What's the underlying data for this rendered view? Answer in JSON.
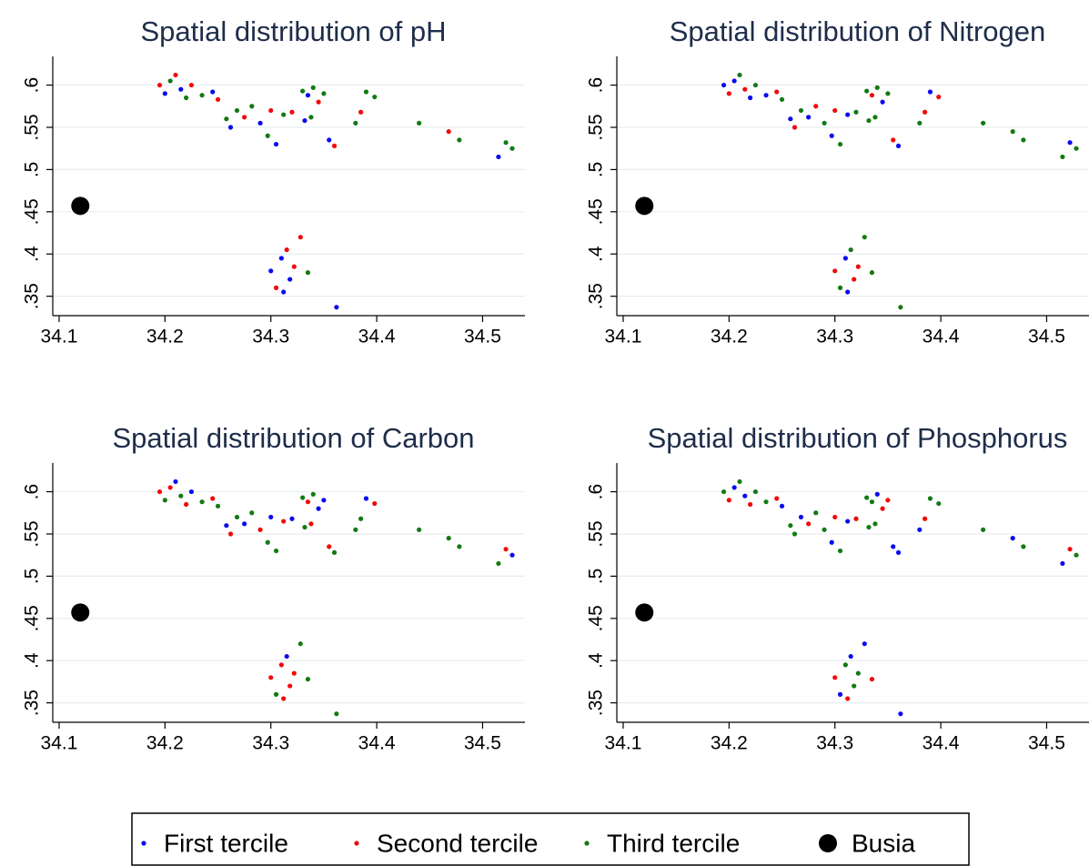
{
  "chart_data": [
    {
      "type": "scatter",
      "title": "Spatial distribution of pH",
      "xlim": [
        34.094,
        34.54
      ],
      "xticks": [
        34.1,
        34.2,
        34.3,
        34.4,
        34.5
      ],
      "ylim": [
        0.327,
        0.634
      ],
      "yticks": [
        {
          "value": 0.35,
          "label": ".35"
        },
        {
          "value": 0.4,
          "label": ".4"
        },
        {
          "value": 0.45,
          "label": ".45"
        },
        {
          "value": 0.5,
          "label": ".5"
        },
        {
          "value": 0.55,
          "label": ".55"
        },
        {
          "value": 0.6,
          "label": ".6"
        }
      ],
      "grid": true,
      "series": [
        {
          "name": "First tercile",
          "color": "#0a0af0",
          "marker": "small",
          "x": [
            34.2,
            34.215,
            34.245,
            34.262,
            34.29,
            34.305,
            34.335,
            34.332,
            34.355,
            34.515,
            34.3,
            34.31,
            34.318,
            34.312,
            34.362
          ],
          "values": [
            0.59,
            0.595,
            0.592,
            0.55,
            0.555,
            0.53,
            0.588,
            0.558,
            0.535,
            0.515,
            0.38,
            0.395,
            0.37,
            0.355,
            0.337
          ]
        },
        {
          "name": "Second tercile",
          "color": "#f00a0a",
          "marker": "small",
          "x": [
            34.195,
            34.21,
            34.225,
            34.25,
            34.275,
            34.3,
            34.32,
            34.345,
            34.36,
            34.385,
            34.468,
            34.305,
            34.315,
            34.322,
            34.328
          ],
          "values": [
            0.6,
            0.612,
            0.6,
            0.583,
            0.562,
            0.57,
            0.568,
            0.58,
            0.528,
            0.568,
            0.545,
            0.36,
            0.405,
            0.385,
            0.42
          ]
        },
        {
          "name": "Third tercile",
          "color": "#127a12",
          "marker": "small",
          "x": [
            34.205,
            34.22,
            34.235,
            34.258,
            34.268,
            34.282,
            34.297,
            34.312,
            34.33,
            34.34,
            34.338,
            34.35,
            34.38,
            34.39,
            34.398,
            34.44,
            34.478,
            34.522,
            34.528,
            34.335
          ],
          "values": [
            0.605,
            0.585,
            0.588,
            0.56,
            0.57,
            0.575,
            0.54,
            0.565,
            0.593,
            0.597,
            0.562,
            0.59,
            0.555,
            0.592,
            0.586,
            0.555,
            0.535,
            0.532,
            0.525,
            0.378
          ]
        },
        {
          "name": "Busia",
          "color": "#000000",
          "marker": "large",
          "x": [
            34.12
          ],
          "values": [
            0.457
          ]
        }
      ]
    },
    {
      "type": "scatter",
      "title": "Spatial distribution of Nitrogen",
      "xlim": [
        34.094,
        34.54
      ],
      "xticks": [
        34.1,
        34.2,
        34.3,
        34.4,
        34.5
      ],
      "ylim": [
        0.327,
        0.634
      ],
      "yticks": [
        {
          "value": 0.35,
          "label": ".35"
        },
        {
          "value": 0.4,
          "label": ".4"
        },
        {
          "value": 0.45,
          "label": ".45"
        },
        {
          "value": 0.5,
          "label": ".5"
        },
        {
          "value": 0.55,
          "label": ".55"
        },
        {
          "value": 0.6,
          "label": ".6"
        }
      ],
      "grid": true,
      "series": [
        {
          "name": "First tercile",
          "color": "#0a0af0",
          "marker": "small",
          "x": [
            34.195,
            34.205,
            34.22,
            34.235,
            34.258,
            34.275,
            34.297,
            34.312,
            34.345,
            34.36,
            34.39,
            34.522,
            34.31,
            34.312
          ],
          "values": [
            0.6,
            0.605,
            0.585,
            0.588,
            0.56,
            0.562,
            0.54,
            0.565,
            0.58,
            0.528,
            0.592,
            0.532,
            0.395,
            0.355
          ]
        },
        {
          "name": "Second tercile",
          "color": "#f00a0a",
          "marker": "small",
          "x": [
            34.2,
            34.215,
            34.245,
            34.262,
            34.282,
            34.3,
            34.335,
            34.355,
            34.385,
            34.398,
            34.3,
            34.318,
            34.322
          ],
          "values": [
            0.59,
            0.595,
            0.592,
            0.55,
            0.575,
            0.57,
            0.588,
            0.535,
            0.568,
            0.586,
            0.38,
            0.37,
            0.385
          ]
        },
        {
          "name": "Third tercile",
          "color": "#127a12",
          "marker": "small",
          "x": [
            34.21,
            34.225,
            34.25,
            34.268,
            34.29,
            34.305,
            34.32,
            34.33,
            34.34,
            34.332,
            34.338,
            34.35,
            34.38,
            34.44,
            34.468,
            34.478,
            34.515,
            34.528,
            34.305,
            34.315,
            34.328,
            34.362,
            34.335
          ],
          "values": [
            0.612,
            0.6,
            0.583,
            0.57,
            0.555,
            0.53,
            0.568,
            0.593,
            0.597,
            0.558,
            0.562,
            0.59,
            0.555,
            0.555,
            0.545,
            0.535,
            0.515,
            0.525,
            0.36,
            0.405,
            0.42,
            0.337,
            0.378
          ]
        },
        {
          "name": "Busia",
          "color": "#000000",
          "marker": "large",
          "x": [
            34.12
          ],
          "values": [
            0.457
          ]
        }
      ]
    },
    {
      "type": "scatter",
      "title": "Spatial distribution of Carbon",
      "xlim": [
        34.094,
        34.54
      ],
      "xticks": [
        34.1,
        34.2,
        34.3,
        34.4,
        34.5
      ],
      "ylim": [
        0.327,
        0.634
      ],
      "yticks": [
        {
          "value": 0.35,
          "label": ".35"
        },
        {
          "value": 0.4,
          "label": ".4"
        },
        {
          "value": 0.45,
          "label": ".45"
        },
        {
          "value": 0.5,
          "label": ".5"
        },
        {
          "value": 0.55,
          "label": ".55"
        },
        {
          "value": 0.6,
          "label": ".6"
        }
      ],
      "grid": true,
      "series": [
        {
          "name": "First tercile",
          "color": "#0a0af0",
          "marker": "small",
          "x": [
            34.21,
            34.225,
            34.258,
            34.275,
            34.3,
            34.32,
            34.345,
            34.35,
            34.39,
            34.528,
            34.315
          ],
          "values": [
            0.612,
            0.6,
            0.56,
            0.562,
            0.57,
            0.568,
            0.58,
            0.59,
            0.592,
            0.525,
            0.405
          ]
        },
        {
          "name": "Second tercile",
          "color": "#f00a0a",
          "marker": "small",
          "x": [
            34.195,
            34.205,
            34.22,
            34.245,
            34.262,
            34.29,
            34.312,
            34.335,
            34.338,
            34.355,
            34.398,
            34.522,
            34.3,
            34.31,
            34.318,
            34.322,
            34.312
          ],
          "values": [
            0.6,
            0.605,
            0.585,
            0.592,
            0.55,
            0.555,
            0.565,
            0.588,
            0.562,
            0.535,
            0.586,
            0.532,
            0.38,
            0.395,
            0.37,
            0.385,
            0.355
          ]
        },
        {
          "name": "Third tercile",
          "color": "#127a12",
          "marker": "small",
          "x": [
            34.2,
            34.215,
            34.235,
            34.25,
            34.268,
            34.282,
            34.297,
            34.305,
            34.33,
            34.34,
            34.332,
            34.36,
            34.38,
            34.385,
            34.44,
            34.468,
            34.478,
            34.515,
            34.305,
            34.328,
            34.362,
            34.335
          ],
          "values": [
            0.59,
            0.595,
            0.588,
            0.583,
            0.57,
            0.575,
            0.54,
            0.53,
            0.593,
            0.597,
            0.558,
            0.528,
            0.555,
            0.568,
            0.555,
            0.545,
            0.535,
            0.515,
            0.36,
            0.42,
            0.337,
            0.378
          ]
        },
        {
          "name": "Busia",
          "color": "#000000",
          "marker": "large",
          "x": [
            34.12
          ],
          "values": [
            0.457
          ]
        }
      ]
    },
    {
      "type": "scatter",
      "title": "Spatial distribution of Phosphorus",
      "xlim": [
        34.094,
        34.54
      ],
      "xticks": [
        34.1,
        34.2,
        34.3,
        34.4,
        34.5
      ],
      "ylim": [
        0.327,
        0.634
      ],
      "yticks": [
        {
          "value": 0.35,
          "label": ".35"
        },
        {
          "value": 0.4,
          "label": ".4"
        },
        {
          "value": 0.45,
          "label": ".45"
        },
        {
          "value": 0.5,
          "label": ".5"
        },
        {
          "value": 0.55,
          "label": ".55"
        },
        {
          "value": 0.6,
          "label": ".6"
        }
      ],
      "grid": true,
      "series": [
        {
          "name": "First tercile",
          "color": "#0a0af0",
          "marker": "small",
          "x": [
            34.205,
            34.215,
            34.25,
            34.268,
            34.297,
            34.312,
            34.34,
            34.355,
            34.36,
            34.38,
            34.468,
            34.515,
            34.305,
            34.315,
            34.328,
            34.362
          ],
          "values": [
            0.605,
            0.595,
            0.583,
            0.57,
            0.54,
            0.565,
            0.597,
            0.535,
            0.528,
            0.555,
            0.545,
            0.515,
            0.36,
            0.405,
            0.42,
            0.337
          ]
        },
        {
          "name": "Second tercile",
          "color": "#f00a0a",
          "marker": "small",
          "x": [
            34.2,
            34.22,
            34.245,
            34.275,
            34.3,
            34.32,
            34.345,
            34.35,
            34.385,
            34.522,
            34.3,
            34.312,
            34.335
          ],
          "values": [
            0.59,
            0.585,
            0.592,
            0.562,
            0.57,
            0.568,
            0.58,
            0.59,
            0.568,
            0.532,
            0.38,
            0.355,
            0.378
          ]
        },
        {
          "name": "Third tercile",
          "color": "#127a12",
          "marker": "small",
          "x": [
            34.195,
            34.21,
            34.225,
            34.235,
            34.258,
            34.262,
            34.282,
            34.29,
            34.305,
            34.33,
            34.335,
            34.332,
            34.338,
            34.39,
            34.398,
            34.44,
            34.478,
            34.528,
            34.31,
            34.318,
            34.322
          ],
          "values": [
            0.6,
            0.612,
            0.6,
            0.588,
            0.56,
            0.55,
            0.575,
            0.555,
            0.53,
            0.593,
            0.588,
            0.558,
            0.562,
            0.592,
            0.586,
            0.555,
            0.535,
            0.525,
            0.395,
            0.37,
            0.385
          ]
        },
        {
          "name": "Busia",
          "color": "#000000",
          "marker": "large",
          "x": [
            34.12
          ],
          "values": [
            0.457
          ]
        }
      ]
    }
  ]
}
